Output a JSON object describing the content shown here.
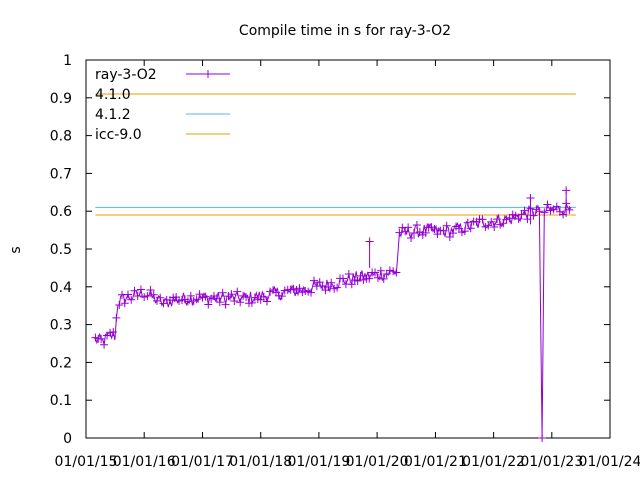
{
  "chart_data": {
    "type": "line",
    "title": "Compile time in s for ray-3-O2",
    "ylabel": "s",
    "xlabel": "",
    "ylim": [
      0,
      1
    ],
    "yticks": [
      "0",
      "0.1",
      "0.2",
      "0.3",
      "0.4",
      "0.5",
      "0.6",
      "0.7",
      "0.8",
      "0.9",
      "1"
    ],
    "xlim": [
      "2015-01-01",
      "2024-01-01"
    ],
    "xticks": [
      "01/01/15",
      "01/01/16",
      "01/01/17",
      "01/01/18",
      "01/01/19",
      "01/01/20",
      "01/01/21",
      "01/01/22",
      "01/01/23",
      "01/01/24"
    ],
    "grid": false,
    "legend": "top-left",
    "series": [
      {
        "name": "ray-3-O2",
        "color": "#9400d3",
        "marker": "plus",
        "points": [
          [
            "2015-03-01",
            0.26
          ],
          [
            "2015-04-15",
            0.255
          ],
          [
            "2015-06-01",
            0.27
          ],
          [
            "2015-07-01",
            0.27
          ],
          [
            "2015-07-20",
            0.36
          ],
          [
            "2015-09-01",
            0.37
          ],
          [
            "2015-11-01",
            0.375
          ],
          [
            "2016-01-01",
            0.385
          ],
          [
            "2016-03-01",
            0.37
          ],
          [
            "2016-05-01",
            0.355
          ],
          [
            "2016-07-01",
            0.365
          ],
          [
            "2016-10-01",
            0.37
          ],
          [
            "2017-01-01",
            0.37
          ],
          [
            "2017-04-01",
            0.37
          ],
          [
            "2017-07-01",
            0.37
          ],
          [
            "2017-10-01",
            0.37
          ],
          [
            "2018-01-01",
            0.375
          ],
          [
            "2018-03-01",
            0.38
          ],
          [
            "2018-06-01",
            0.385
          ],
          [
            "2018-09-01",
            0.39
          ],
          [
            "2018-12-01",
            0.4
          ],
          [
            "2019-03-01",
            0.405
          ],
          [
            "2019-06-01",
            0.415
          ],
          [
            "2019-09-01",
            0.425
          ],
          [
            "2019-12-01",
            0.43
          ],
          [
            "2020-03-01",
            0.435
          ],
          [
            "2020-05-01",
            0.44
          ],
          [
            "2020-05-20",
            0.54
          ],
          [
            "2020-08-01",
            0.545
          ],
          [
            "2020-11-01",
            0.55
          ],
          [
            "2021-02-01",
            0.545
          ],
          [
            "2021-05-01",
            0.55
          ],
          [
            "2021-08-01",
            0.56
          ],
          [
            "2021-11-01",
            0.57
          ],
          [
            "2022-02-01",
            0.575
          ],
          [
            "2022-05-01",
            0.58
          ],
          [
            "2022-08-01",
            0.595
          ],
          [
            "2022-10-15",
            0.6
          ],
          [
            "2022-11-01",
            0.0
          ],
          [
            "2022-11-15",
            0.6
          ],
          [
            "2023-02-01",
            0.605
          ],
          [
            "2023-05-01",
            0.61
          ]
        ],
        "spikes": [
          [
            "2019-11-15",
            0.52
          ],
          [
            "2023-04-01",
            0.655
          ],
          [
            "2022-08-20",
            0.635
          ]
        ]
      },
      {
        "name": "4.1.0",
        "color": "#e69f00",
        "y": 0.91,
        "x_range": [
          "2015-03-01",
          "2023-06-01"
        ]
      },
      {
        "name": "4.1.2",
        "color": "#56b4e9",
        "y": 0.61,
        "x_range": [
          "2015-03-01",
          "2023-06-01"
        ]
      },
      {
        "name": "icc-9.0",
        "color": "#e69f00",
        "y": 0.59,
        "x_range": [
          "2015-03-01",
          "2023-06-01"
        ]
      }
    ]
  }
}
